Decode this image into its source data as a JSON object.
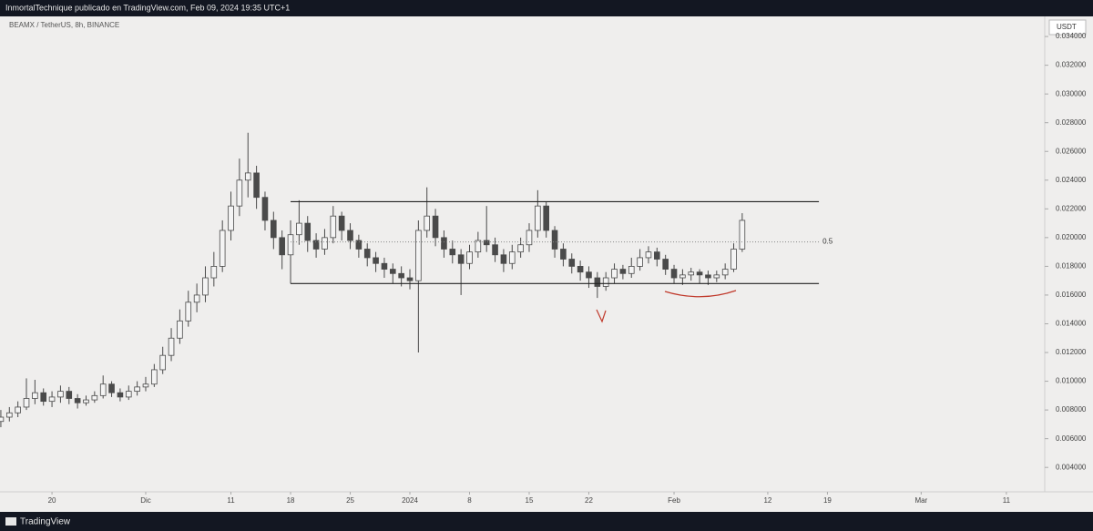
{
  "header": {
    "text": "InmortalTechnique publicado en TradingView.com, Feb 09, 2024 19:35 UTC+1"
  },
  "footer": {
    "brand": "TradingView"
  },
  "chart_data": {
    "type": "candlestick",
    "title": "BEAMX / TetherUS, 8h, BINANCE",
    "currency": "USDT",
    "up_color": "#f4f4f4",
    "down_color": "#4a4a4a",
    "wick_color": "#4a4a4a",
    "x": [
      14,
      15,
      16,
      17,
      18,
      19,
      20,
      21,
      22,
      23,
      24,
      25,
      26,
      27,
      28,
      29,
      30,
      31,
      32,
      33,
      34,
      35,
      36,
      37,
      38,
      39,
      40,
      41,
      42,
      43,
      44,
      45,
      46,
      47,
      48,
      49,
      50,
      51,
      52,
      53,
      54,
      55,
      56,
      57,
      58,
      59,
      60,
      61,
      62,
      63,
      64,
      65,
      66,
      67,
      68,
      69,
      70,
      71,
      72,
      73,
      74,
      75,
      76,
      77,
      78,
      79,
      80,
      81,
      82,
      83,
      84,
      85,
      86,
      87,
      88,
      89,
      90,
      91,
      92,
      93,
      94,
      95,
      96,
      97,
      98,
      99,
      100,
      101
    ],
    "open": [
      0.0072,
      0.0075,
      0.0078,
      0.0082,
      0.0088,
      0.0092,
      0.0086,
      0.0089,
      0.0093,
      0.0088,
      0.0085,
      0.0087,
      0.009,
      0.0098,
      0.0092,
      0.0089,
      0.0093,
      0.0096,
      0.0098,
      0.0108,
      0.0118,
      0.013,
      0.0142,
      0.0155,
      0.016,
      0.0172,
      0.018,
      0.0205,
      0.0222,
      0.024,
      0.0245,
      0.0228,
      0.0212,
      0.02,
      0.0188,
      0.0202,
      0.021,
      0.0198,
      0.0192,
      0.02,
      0.0215,
      0.0205,
      0.0198,
      0.0192,
      0.0186,
      0.0182,
      0.0178,
      0.0175,
      0.0172,
      0.017,
      0.0205,
      0.0215,
      0.02,
      0.0192,
      0.0188,
      0.0182,
      0.019,
      0.0198,
      0.0195,
      0.0188,
      0.0182,
      0.019,
      0.0195,
      0.0205,
      0.0222,
      0.0205,
      0.0192,
      0.0185,
      0.018,
      0.0176,
      0.0172,
      0.0166,
      0.0172,
      0.0178,
      0.0175,
      0.018,
      0.0186,
      0.019,
      0.0185,
      0.0178,
      0.0172,
      0.0174,
      0.0176,
      0.0174,
      0.0172,
      0.0174,
      0.0178,
      0.0192
    ],
    "high": [
      0.008,
      0.0082,
      0.0086,
      0.0102,
      0.0101,
      0.0095,
      0.0093,
      0.0097,
      0.0096,
      0.0091,
      0.009,
      0.0093,
      0.0104,
      0.01,
      0.0095,
      0.0097,
      0.01,
      0.0103,
      0.0112,
      0.0124,
      0.0137,
      0.015,
      0.0163,
      0.0168,
      0.018,
      0.019,
      0.0212,
      0.0232,
      0.0255,
      0.0273,
      0.025,
      0.0232,
      0.0218,
      0.0205,
      0.0212,
      0.0226,
      0.0215,
      0.0203,
      0.0206,
      0.0222,
      0.0218,
      0.021,
      0.0202,
      0.0196,
      0.019,
      0.0186,
      0.0182,
      0.018,
      0.0178,
      0.0212,
      0.0235,
      0.022,
      0.0205,
      0.0198,
      0.0192,
      0.0195,
      0.0204,
      0.0222,
      0.02,
      0.0192,
      0.0195,
      0.02,
      0.021,
      0.0233,
      0.0225,
      0.0208,
      0.0196,
      0.0189,
      0.0184,
      0.018,
      0.0176,
      0.0176,
      0.0182,
      0.0181,
      0.0186,
      0.0192,
      0.0194,
      0.0193,
      0.0188,
      0.0181,
      0.0178,
      0.0179,
      0.0178,
      0.0177,
      0.0177,
      0.0182,
      0.0196,
      0.0217
    ],
    "low": [
      0.0068,
      0.0072,
      0.0075,
      0.008,
      0.0084,
      0.0083,
      0.0082,
      0.0085,
      0.0084,
      0.0081,
      0.0083,
      0.0085,
      0.0088,
      0.0089,
      0.0086,
      0.0087,
      0.009,
      0.0093,
      0.0096,
      0.0105,
      0.0114,
      0.0126,
      0.0138,
      0.0148,
      0.0155,
      0.0166,
      0.0176,
      0.0198,
      0.0215,
      0.0228,
      0.022,
      0.0205,
      0.0192,
      0.0178,
      0.0168,
      0.0195,
      0.019,
      0.0186,
      0.0188,
      0.0196,
      0.0198,
      0.0192,
      0.0186,
      0.018,
      0.0176,
      0.0172,
      0.0168,
      0.0166,
      0.0164,
      0.012,
      0.02,
      0.0194,
      0.0186,
      0.0182,
      0.016,
      0.0178,
      0.0186,
      0.019,
      0.0183,
      0.0176,
      0.0178,
      0.0186,
      0.019,
      0.02,
      0.02,
      0.0186,
      0.018,
      0.0175,
      0.017,
      0.0165,
      0.0158,
      0.0163,
      0.0168,
      0.0171,
      0.0172,
      0.0177,
      0.0182,
      0.018,
      0.0174,
      0.0168,
      0.0167,
      0.017,
      0.0168,
      0.0167,
      0.0169,
      0.0171,
      0.0176,
      0.019
    ],
    "close": [
      0.0075,
      0.0078,
      0.0082,
      0.0088,
      0.0092,
      0.0086,
      0.0089,
      0.0093,
      0.0088,
      0.0085,
      0.0087,
      0.009,
      0.0098,
      0.0092,
      0.0089,
      0.0093,
      0.0096,
      0.0098,
      0.0108,
      0.0118,
      0.013,
      0.0142,
      0.0155,
      0.016,
      0.0172,
      0.018,
      0.0205,
      0.0222,
      0.024,
      0.0245,
      0.0228,
      0.0212,
      0.02,
      0.0188,
      0.0202,
      0.021,
      0.0198,
      0.0192,
      0.02,
      0.0215,
      0.0205,
      0.0198,
      0.0192,
      0.0186,
      0.0182,
      0.0178,
      0.0175,
      0.0172,
      0.017,
      0.0205,
      0.0215,
      0.02,
      0.0192,
      0.0188,
      0.0182,
      0.019,
      0.0198,
      0.0195,
      0.0188,
      0.0182,
      0.019,
      0.0195,
      0.0205,
      0.0222,
      0.0205,
      0.0192,
      0.0185,
      0.018,
      0.0176,
      0.0172,
      0.0166,
      0.0172,
      0.0178,
      0.0175,
      0.018,
      0.0186,
      0.019,
      0.0185,
      0.0178,
      0.0172,
      0.0174,
      0.0176,
      0.0174,
      0.0172,
      0.0174,
      0.0178,
      0.0192,
      0.0212
    ],
    "xlim": [
      13.9,
      136.5
    ],
    "xticks": [
      {
        "value": 20,
        "label": "20"
      },
      {
        "value": 31,
        "label": "Dic"
      },
      {
        "value": 41,
        "label": "11"
      },
      {
        "value": 48,
        "label": "18"
      },
      {
        "value": 55,
        "label": "25"
      },
      {
        "value": 62,
        "label": "2024"
      },
      {
        "value": 69,
        "label": "8"
      },
      {
        "value": 76,
        "label": "15"
      },
      {
        "value": 83,
        "label": "22"
      },
      {
        "value": 93,
        "label": "Feb"
      },
      {
        "value": 104,
        "label": "12"
      },
      {
        "value": 111,
        "label": "19"
      },
      {
        "value": 122,
        "label": "Mar"
      },
      {
        "value": 132,
        "label": "11"
      }
    ],
    "ylim": [
      0.0023,
      0.0354
    ],
    "yticks": [
      {
        "value": 0.004,
        "label": "0.004000"
      },
      {
        "value": 0.006,
        "label": "0.006000"
      },
      {
        "value": 0.008,
        "label": "0.008000"
      },
      {
        "value": 0.01,
        "label": "0.010000"
      },
      {
        "value": 0.012,
        "label": "0.012000"
      },
      {
        "value": 0.014,
        "label": "0.014000"
      },
      {
        "value": 0.016,
        "label": "0.016000"
      },
      {
        "value": 0.018,
        "label": "0.018000"
      },
      {
        "value": 0.02,
        "label": "0.020000"
      },
      {
        "value": 0.022,
        "label": "0.022000"
      },
      {
        "value": 0.024,
        "label": "0.024000"
      },
      {
        "value": 0.026,
        "label": "0.026000"
      },
      {
        "value": 0.028,
        "label": "0.028000"
      },
      {
        "value": 0.03,
        "label": "0.030000"
      },
      {
        "value": 0.032,
        "label": "0.032000"
      },
      {
        "value": 0.034,
        "label": "0.034000"
      }
    ],
    "levels": [
      {
        "value": 0.0225,
        "from": 48,
        "to": 110
      },
      {
        "value": 0.0168,
        "from": 48,
        "to": 110
      }
    ],
    "fib_level": {
      "value": 0.0197,
      "label": "0.5",
      "from": 48,
      "to": 110
    }
  }
}
